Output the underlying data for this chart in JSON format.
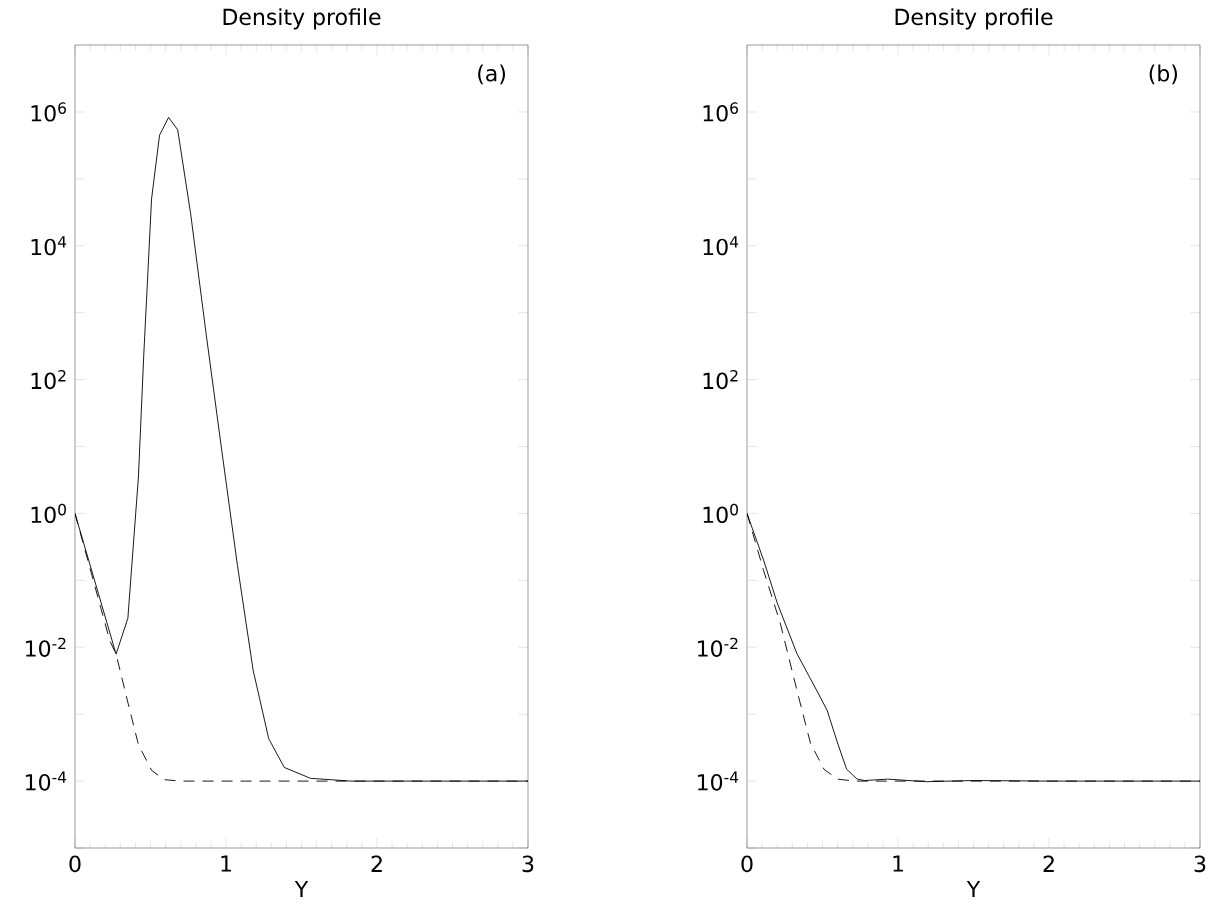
{
  "chart_data": [
    {
      "type": "line",
      "title": "Density profile",
      "xlabel": "Y",
      "annotations": [
        "(a)"
      ],
      "log": "y",
      "xlim": [
        0,
        3
      ],
      "ylim": [
        1e-05,
        10000000.0
      ],
      "xticks": [
        0,
        1,
        2,
        3
      ],
      "yticks": [
        {
          "value": 1e-05,
          "label": null
        },
        {
          "value": 0.0001,
          "label": "10$^{-4}$"
        },
        {
          "value": 0.001,
          "label": null
        },
        {
          "value": 0.01,
          "label": "10$^{-2}$"
        },
        {
          "value": 0.1,
          "label": null
        },
        {
          "value": 1,
          "label": "10$^{0}$"
        },
        {
          "value": 10,
          "label": null
        },
        {
          "value": 100,
          "label": "10$^{2}$"
        },
        {
          "value": 1000,
          "label": null
        },
        {
          "value": 10000.0,
          "label": "10$^{4}$"
        },
        {
          "value": 100000.0,
          "label": null
        },
        {
          "value": 1000000.0,
          "label": "10$^{6}$"
        }
      ],
      "series": [
        {
          "color": "#000000",
          "line_style": "solid",
          "x": [
            0,
            0.272,
            0.35,
            0.42,
            0.455,
            0.507,
            0.56,
            0.62,
            0.68,
            0.766,
            0.869,
            0.972,
            1.076,
            1.18,
            1.283,
            1.386,
            1.56,
            1.83,
            3
          ],
          "values": [
            1,
            0.0079,
            0.027,
            3.5,
            224,
            50000,
            450000,
            830000,
            540000,
            30000,
            470,
            8.7,
            0.166,
            0.0045,
            0.00043,
            0.00016,
            0.00011,
            0.0001,
            0.0001
          ]
        },
        {
          "color": "#000000",
          "line_style": "dashed",
          "x": [
            0,
            0.23,
            0.272,
            0.35,
            0.42,
            0.507,
            0.59,
            0.7,
            3
          ],
          "values": [
            1,
            0.0126,
            0.0079,
            0.0015,
            0.00035,
            0.000145,
            0.000105,
            0.0001,
            0.0001
          ]
        }
      ]
    },
    {
      "type": "line",
      "title": "Density profile",
      "xlabel": "Y",
      "annotations": [
        "(b)"
      ],
      "log": "y",
      "xlim": [
        0,
        3
      ],
      "ylim": [
        1e-05,
        10000000.0
      ],
      "xticks": [
        0,
        1,
        2,
        3
      ],
      "yticks": [
        {
          "value": 1e-05,
          "label": null
        },
        {
          "value": 0.0001,
          "label": "10$^{-4}$"
        },
        {
          "value": 0.001,
          "label": null
        },
        {
          "value": 0.01,
          "label": "10$^{-2}$"
        },
        {
          "value": 0.1,
          "label": null
        },
        {
          "value": 1,
          "label": "10$^{0}$"
        },
        {
          "value": 10,
          "label": null
        },
        {
          "value": 100,
          "label": "10$^{2}$"
        },
        {
          "value": 1000,
          "label": null
        },
        {
          "value": 10000.0,
          "label": "10$^{4}$"
        },
        {
          "value": 100000.0,
          "label": null
        },
        {
          "value": 1000000.0,
          "label": "10$^{6}$"
        }
      ],
      "series": [
        {
          "color": "#000000",
          "line_style": "solid",
          "x": [
            0,
            0.11,
            0.2,
            0.33,
            0.46,
            0.53,
            0.6,
            0.66,
            0.73,
            0.78,
            0.93,
            1.19,
            1.5,
            2.0,
            3
          ],
          "values": [
            1,
            0.2,
            0.046,
            0.0081,
            0.0023,
            0.00115,
            0.00037,
            0.00015,
            0.000107,
            0.000102,
            0.000107,
            9.8e-05,
            0.000102,
            0.0001,
            0.0001
          ]
        },
        {
          "color": "#000000",
          "line_style": "dashed",
          "x": [
            0,
            0.11,
            0.22,
            0.33,
            0.42,
            0.51,
            0.6,
            0.71,
            3
          ],
          "values": [
            1,
            0.14,
            0.023,
            0.0023,
            0.00037,
            0.00015,
            0.000107,
            0.0001,
            0.0001
          ]
        }
      ]
    }
  ]
}
